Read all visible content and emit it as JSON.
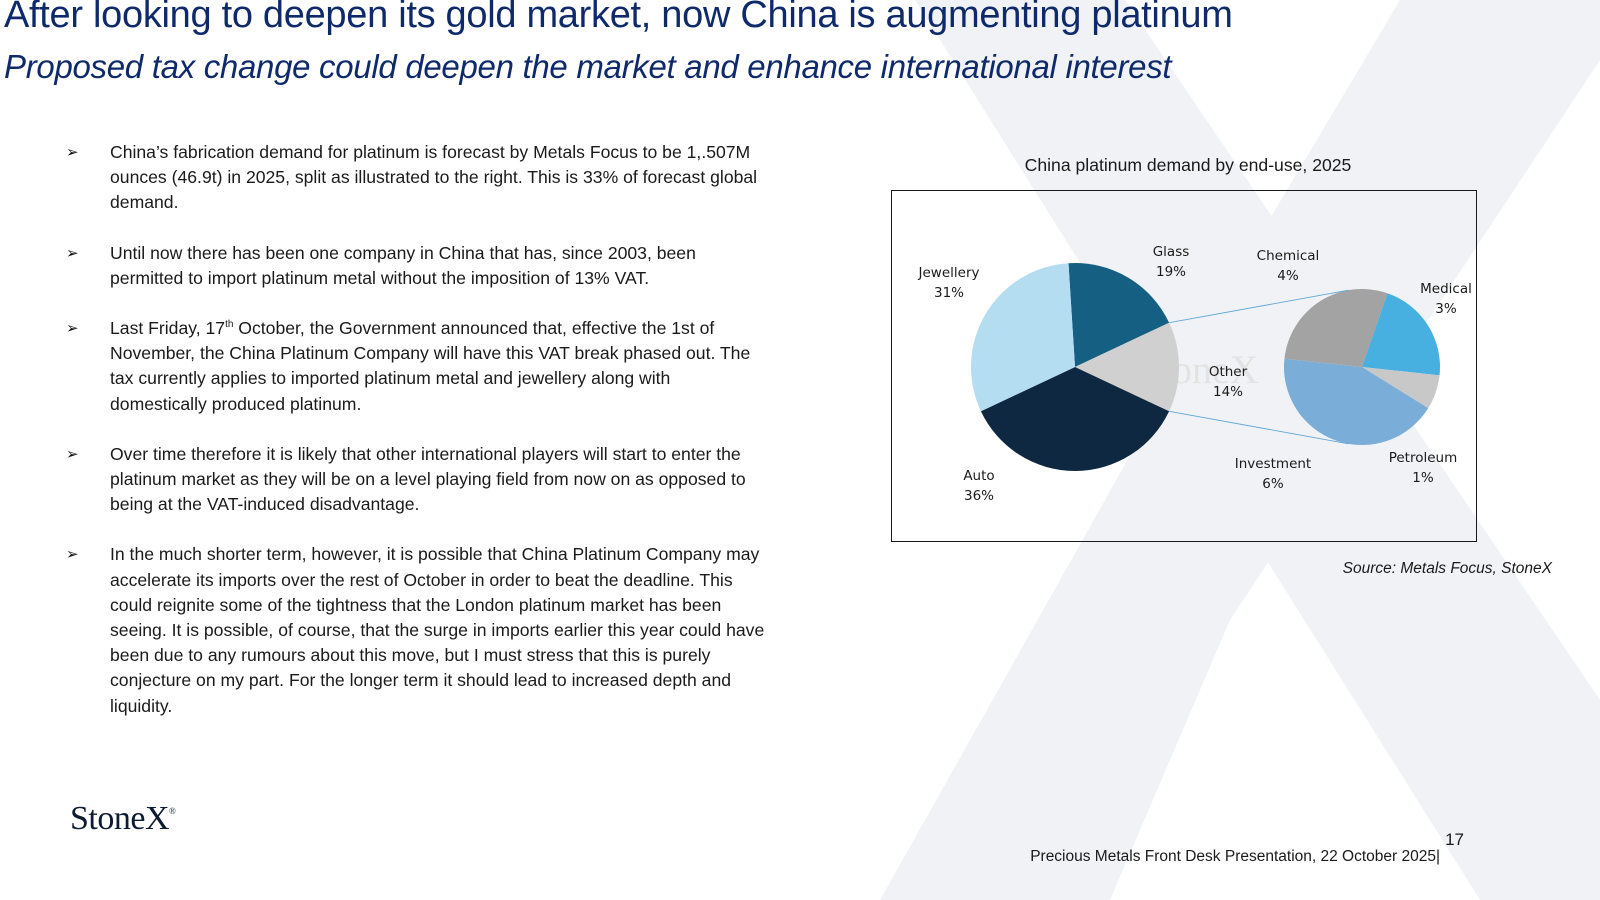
{
  "title": "After looking to deepen its gold market, now China is augmenting platinum",
  "subtitle": "Proposed tax change could deepen the market and enhance international interest",
  "bullets": [
    {
      "text": "China’s fabrication demand for platinum is forecast by Metals Focus to be 1,.507M ounces (46.9t) in 2025, split as illustrated to the right.  This is 33% of forecast global demand."
    },
    {
      "text": "Until now there has been one company in China that has, since 2003, been permitted to import platinum metal without the imposition of 13% VAT."
    },
    {
      "pre": " Last Friday, 17",
      "sup": "th",
      "post": " October, the Government announced that, effective the 1st of November, the China Platinum Company will have this VAT break phased out.  The tax currently applies to imported  platinum metal and jewellery along with domestically produced platinum."
    },
    {
      "text": "Over time therefore it is likely that other international players will start to enter the platinum market as they will be on a level playing field from now on as opposed to being at the VAT-induced disadvantage."
    },
    {
      "text": "In the much shorter term, however, it is possible that China Platinum Company may accelerate its imports over the rest of October in order to beat the deadline.  This could reignite some of the tightness that the London platinum market has been seeing.  It is possible, of course, that the surge in imports earlier this year could have been due to any rumours about this move, but I must stress that this is purely conjecture on my part. For the longer term it should lead to increased depth and liquidity."
    }
  ],
  "bullet_glyph": "➢",
  "source": "Source: Metals Focus, StoneX",
  "logo": {
    "text": "StoneX",
    "tm": "®"
  },
  "watermark_text": "oneX",
  "page_number": "17",
  "footer": "Precious Metals Front Desk Presentation, 22 October 2025|",
  "colors": {
    "title": "#0f2a6b",
    "watermark": "#eef0f4"
  },
  "chart_data": {
    "type": "pie",
    "subtype": "pie-of-pie",
    "title": "China platinum demand by end-use, 2025",
    "main_pie": [
      {
        "name": "Glass",
        "value": 19,
        "label": "19%",
        "color": "#155f82"
      },
      {
        "name": "Other",
        "value": 14,
        "label": "14%",
        "color": "#d0d0d0"
      },
      {
        "name": "Auto",
        "value": 36,
        "label": "36%",
        "color": "#0e2841"
      },
      {
        "name": "Jewellery",
        "value": 31,
        "label": "31%",
        "color": "#b5ddf1"
      }
    ],
    "secondary_pie": [
      {
        "name": "Medical",
        "value": 3,
        "label": "3%",
        "color": "#47b0e0"
      },
      {
        "name": "Petroleum",
        "value": 1,
        "label": "1%",
        "color": "#c8c8c8"
      },
      {
        "name": "Investment",
        "value": 6,
        "label": "6%",
        "color": "#7aadd7"
      },
      {
        "name": "Chemical",
        "value": 4,
        "label": "4%",
        "color": "#a3a3a3"
      }
    ],
    "legend": "none"
  }
}
